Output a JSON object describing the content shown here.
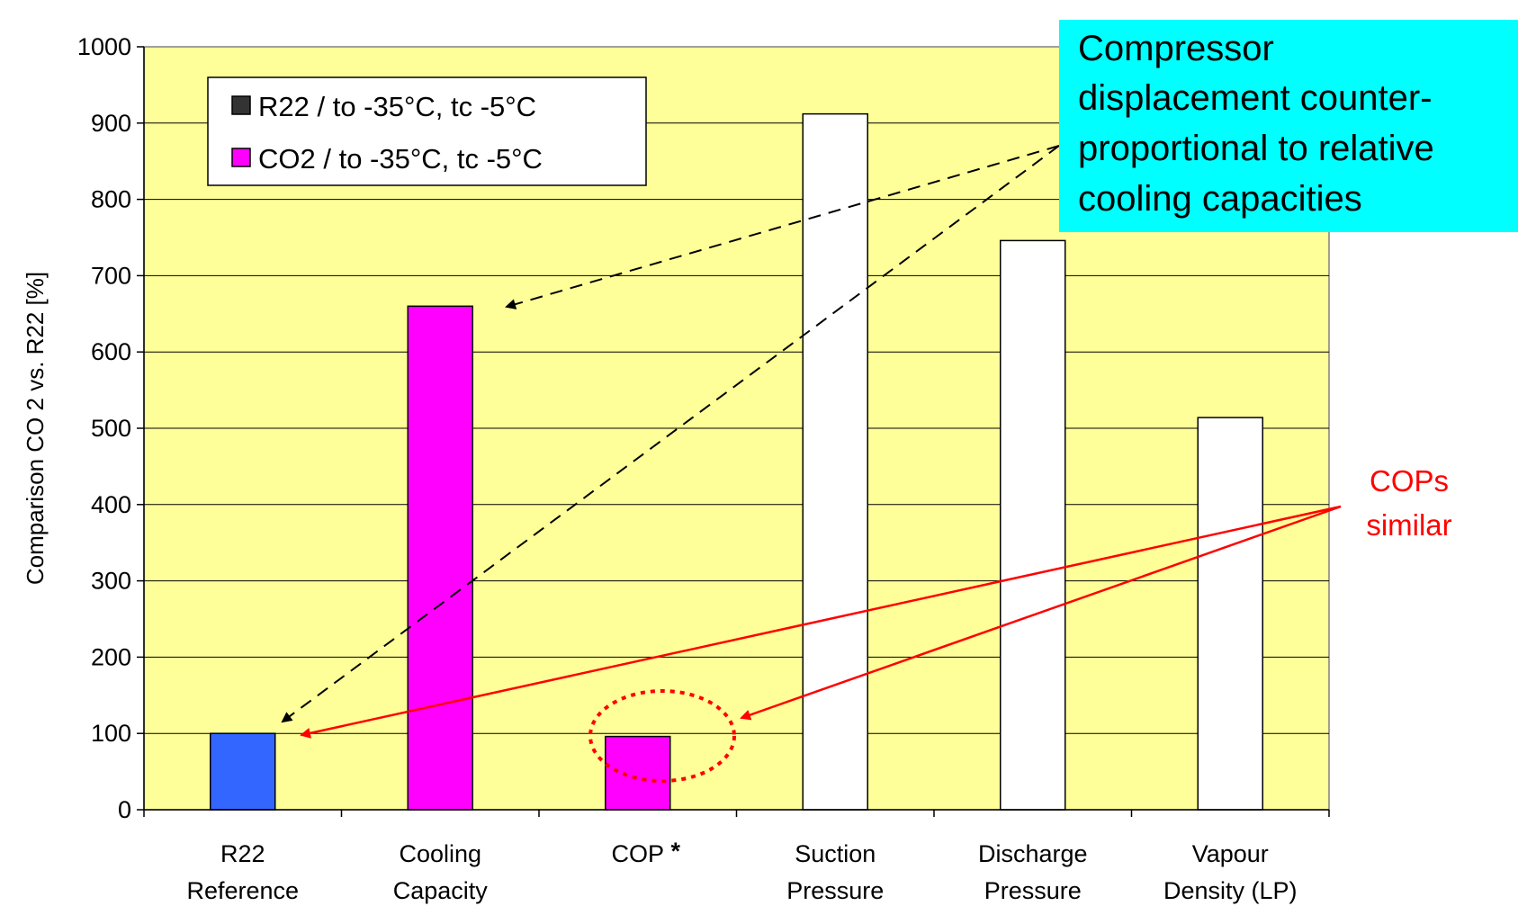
{
  "chart_data": {
    "type": "bar",
    "title": "",
    "ylabel": "Comparison CO 2 vs. R22 [%]",
    "ylim": [
      0,
      1000
    ],
    "yticks": [
      "0",
      "100",
      "200",
      "300",
      "400",
      "500",
      "600",
      "700",
      "800",
      "900",
      "1000"
    ],
    "categories": [
      {
        "line1": "R22",
        "line2": "Reference"
      },
      {
        "line1": "Cooling",
        "line2": "Capacity"
      },
      {
        "line1": "COP",
        "line2": "",
        "marker": "*"
      },
      {
        "line1": "Suction",
        "line2": "Pressure"
      },
      {
        "line1": "Discharge",
        "line2": "Pressure"
      },
      {
        "line1": "Vapour",
        "line2": "Density (LP)"
      }
    ],
    "values": [
      100,
      660,
      96,
      912,
      746,
      514
    ],
    "bar_colors": [
      "#3366ff",
      "#ff00ff",
      "#ff00ff",
      "#ffffff",
      "#ffffff",
      "#ffffff"
    ],
    "plot_background": "#ffff99",
    "grid": true,
    "legend": {
      "placement": "top-left",
      "items": [
        {
          "label": "R22 / to -35°C, tc -5°C",
          "color": "#333333"
        },
        {
          "label": "CO2 / to -35°C, tc -5°C",
          "color": "#ff00ff"
        }
      ]
    },
    "annotations": {
      "callout": {
        "lines": [
          "Compressor",
          "displacement counter-",
          "proportional to relative",
          "cooling capacities"
        ],
        "background": "#00ffff"
      },
      "cop_note": {
        "lines": [
          "COPs",
          "similar"
        ],
        "color": "#ff0000"
      }
    }
  }
}
